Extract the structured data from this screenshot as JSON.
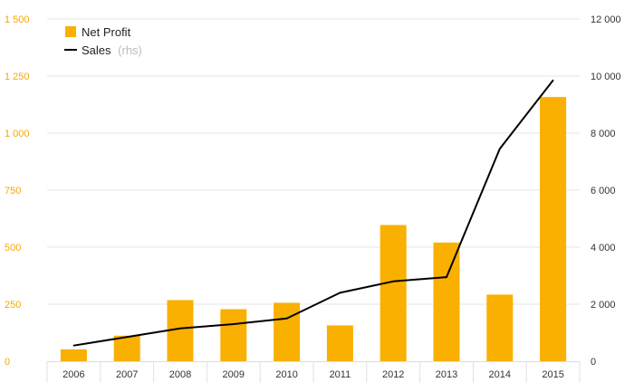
{
  "chart_data": {
    "type": "bar+line",
    "title": "",
    "categories": [
      "2006",
      "2007",
      "2008",
      "2009",
      "2010",
      "2011",
      "2012",
      "2013",
      "2014",
      "2015"
    ],
    "series": [
      {
        "name": "Net Profit",
        "type": "bar",
        "axis": "left",
        "color": "#f9b000",
        "values": [
          52,
          112,
          268,
          228,
          256,
          157,
          597,
          520,
          292,
          1158
        ]
      },
      {
        "name": "Sales",
        "name_suffix": "(rhs)",
        "type": "line",
        "axis": "right",
        "color": "#000000",
        "values": [
          550,
          850,
          1150,
          1300,
          1500,
          2400,
          2800,
          2950,
          7450,
          9850
        ]
      }
    ],
    "y_left": {
      "range": [
        0,
        1500
      ],
      "ticks": [
        0,
        250,
        500,
        750,
        1000,
        1250,
        1500
      ],
      "tick_labels": [
        "0",
        "250",
        "500",
        "750",
        "1 000",
        "1 250",
        "1 500"
      ],
      "color": "#f5a800"
    },
    "y_right": {
      "range": [
        0,
        12000
      ],
      "ticks": [
        0,
        2000,
        4000,
        6000,
        8000,
        10000,
        12000
      ],
      "tick_labels": [
        "0",
        "2 000",
        "4 000",
        "6 000",
        "8 000",
        "10 000",
        "12 000"
      ],
      "color": "#333333"
    },
    "grid": true,
    "legend_position": "top-left",
    "xlabel": "",
    "ylabel": ""
  }
}
